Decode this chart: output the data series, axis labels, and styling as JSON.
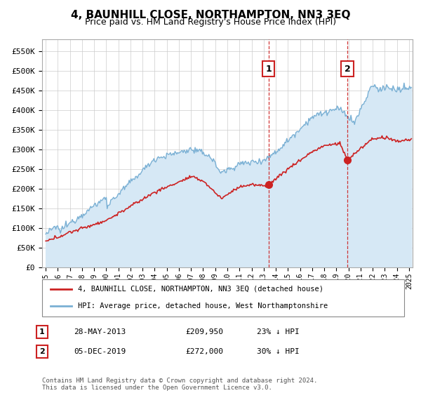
{
  "title": "4, BAUNHILL CLOSE, NORTHAMPTON, NN3 3EQ",
  "subtitle": "Price paid vs. HM Land Registry's House Price Index (HPI)",
  "ylabel_ticks": [
    "£0",
    "£50K",
    "£100K",
    "£150K",
    "£200K",
    "£250K",
    "£300K",
    "£350K",
    "£400K",
    "£450K",
    "£500K",
    "£550K"
  ],
  "ytick_values": [
    0,
    50000,
    100000,
    150000,
    200000,
    250000,
    300000,
    350000,
    400000,
    450000,
    500000,
    550000
  ],
  "ylim": [
    0,
    580000
  ],
  "xlim_start": 1994.7,
  "xlim_end": 2025.3,
  "sale1_x": 2013.4,
  "sale1_y": 209950,
  "sale2_x": 2019.92,
  "sale2_y": 272000,
  "red_line_color": "#cc2222",
  "blue_line_color": "#7ab0d4",
  "blue_fill_color": "#d6e8f5",
  "bg_color": "#ffffff",
  "grid_color": "#cccccc",
  "legend_label_red": "4, BAUNHILL CLOSE, NORTHAMPTON, NN3 3EQ (detached house)",
  "legend_label_blue": "HPI: Average price, detached house, West Northamptonshire",
  "sale1_date": "28-MAY-2013",
  "sale1_price": "£209,950",
  "sale1_hpi": "23% ↓ HPI",
  "sale2_date": "05-DEC-2019",
  "sale2_price": "£272,000",
  "sale2_hpi": "30% ↓ HPI",
  "footnote": "Contains HM Land Registry data © Crown copyright and database right 2024.\nThis data is licensed under the Open Government Licence v3.0.",
  "xtick_years": [
    1995,
    1996,
    1997,
    1998,
    1999,
    2000,
    2001,
    2002,
    2003,
    2004,
    2005,
    2006,
    2007,
    2008,
    2009,
    2010,
    2011,
    2012,
    2013,
    2014,
    2015,
    2016,
    2017,
    2018,
    2019,
    2020,
    2021,
    2022,
    2023,
    2024,
    2025
  ]
}
